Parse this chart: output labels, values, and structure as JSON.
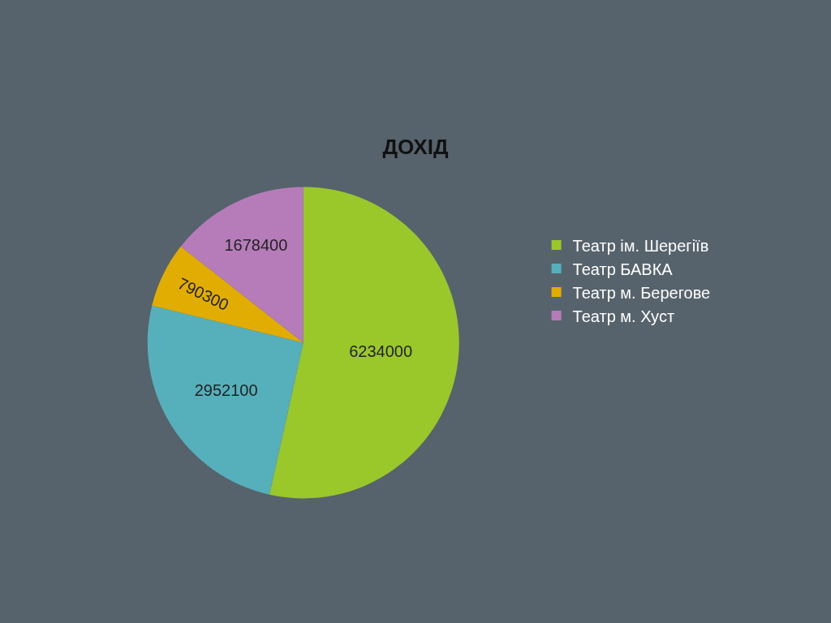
{
  "chart_data": {
    "type": "pie",
    "title": "ДОХІД",
    "categories": [
      "Театр ім. Шерегіїв",
      "Театр БАВКА",
      "Театр м. Берегове",
      "Театр м. Хуст"
    ],
    "values": [
      6234000,
      2952100,
      790300,
      1678400
    ],
    "colors": [
      "#9ac72a",
      "#56b0bb",
      "#e2ad02",
      "#b57cb9"
    ],
    "data_labels": true,
    "legend": "right"
  }
}
